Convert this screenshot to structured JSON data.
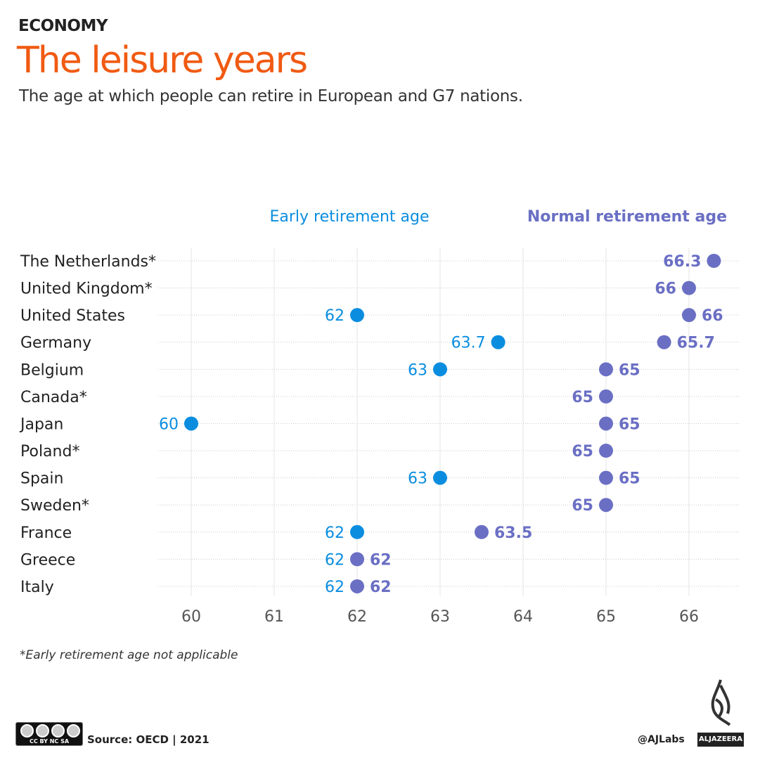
{
  "header": {
    "kicker": "ECONOMY",
    "title": "The leisure years",
    "subtitle": "The age at which people can retire in European and G7 nations."
  },
  "footer": {
    "footnote": "*Early retirement age not applicable",
    "source": "Source: OECD | 2021",
    "handle": "@AJLabs",
    "brand": "ALJAZEERA",
    "license": "CC BY NC SA"
  },
  "colors": {
    "early": "#0a8ddf",
    "normal": "#6a6fc4",
    "title": "#f05a12"
  },
  "chart_data": {
    "type": "dumbbell",
    "xlim": [
      59.6,
      66.6
    ],
    "xticks": [
      60,
      61,
      62,
      63,
      64,
      65,
      66
    ],
    "grid": true,
    "legend": {
      "early": "Early retirement age",
      "normal": "Normal retirement age",
      "placement": "top"
    },
    "categories": [
      "The Netherlands*",
      "United Kingdom*",
      "United States",
      "Germany",
      "Belgium",
      "Canada*",
      "Japan",
      "Poland*",
      "Spain",
      "Sweden*",
      "France",
      "Greece",
      "Italy"
    ],
    "series": [
      {
        "name": "Early retirement age",
        "values": [
          null,
          null,
          62,
          63.7,
          63,
          null,
          60,
          null,
          63,
          null,
          62,
          62,
          62
        ]
      },
      {
        "name": "Normal retirement age",
        "values": [
          66.3,
          66,
          66,
          65.7,
          65,
          65,
          65,
          65,
          65,
          65,
          63.5,
          62,
          62
        ]
      }
    ]
  }
}
